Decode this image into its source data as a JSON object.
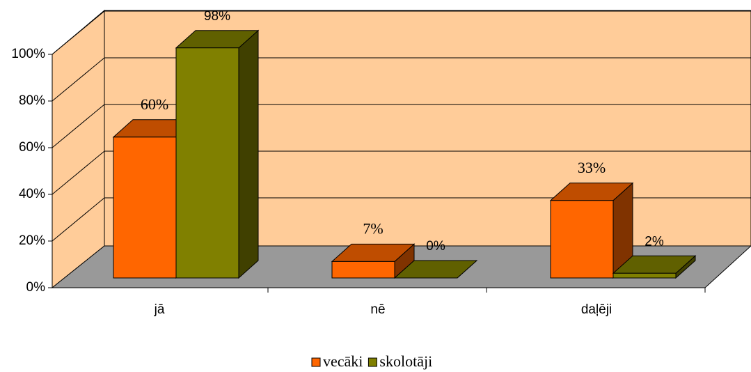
{
  "chart_data": {
    "type": "bar3d",
    "categories": [
      "jā",
      "nē",
      "daļēji"
    ],
    "series": [
      {
        "name": "vecāki",
        "color": "#ff6600",
        "values": [
          60,
          7,
          33
        ],
        "value_labels": [
          "60%",
          "7%",
          "33%"
        ]
      },
      {
        "name": "skolotāji",
        "color": "#808000",
        "values": [
          98,
          0,
          2
        ],
        "value_labels": [
          "98%",
          "0%",
          "2%"
        ]
      }
    ],
    "ylim": [
      0,
      100
    ],
    "yticks": [
      {
        "value": 0,
        "label": "0%"
      },
      {
        "value": 20,
        "label": "20%"
      },
      {
        "value": 40,
        "label": "40%"
      },
      {
        "value": 60,
        "label": "60%"
      },
      {
        "value": 80,
        "label": "80%"
      },
      {
        "value": 100,
        "label": "100%"
      }
    ],
    "grid": true,
    "legend": "bottom"
  }
}
